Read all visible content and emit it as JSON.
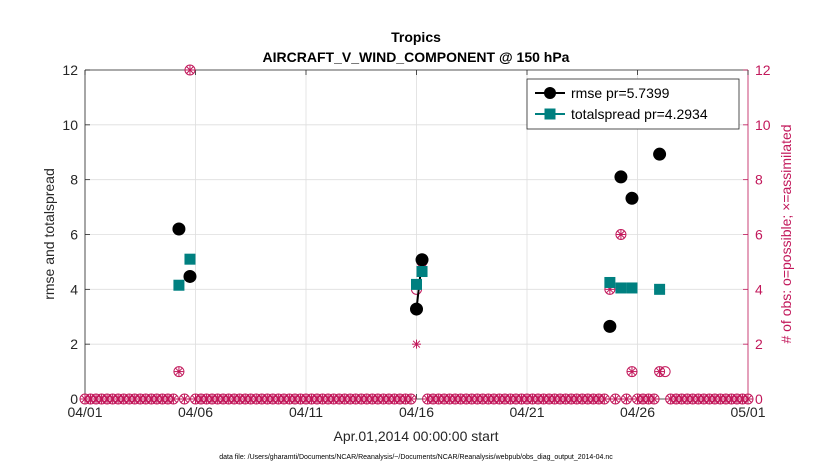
{
  "chart_data": {
    "type": "scatter",
    "title": "Tropics",
    "subtitle": "AIRCRAFT_V_WIND_COMPONENT @ 150 hPa",
    "xlabel": "Apr.01,2014 00:00:00 start",
    "ylabel": "rmse and totalspread",
    "ylabel_right": "# of obs: o=possible; ×=assimilated",
    "footnote": "data file: /Users/gharamti/Documents/NCAR/Reanalysis/~/Documents/NCAR/Reanalysis/webpub/obs_diag_output_2014-04.nc",
    "xlim": [
      1,
      31
    ],
    "ylim": [
      0,
      12
    ],
    "ylim_right": [
      0,
      12
    ],
    "x_tick_values": [
      1,
      6,
      11,
      16,
      21,
      26,
      31
    ],
    "x_tick_labels": [
      "04/01",
      "04/06",
      "04/11",
      "04/16",
      "04/21",
      "04/26",
      "05/01"
    ],
    "y_ticks": [
      0,
      2,
      4,
      6,
      8,
      10,
      12
    ],
    "y_ticks_right": [
      0,
      2,
      4,
      6,
      8,
      10,
      12
    ],
    "grid": true,
    "legend_position": "top-right",
    "colors": {
      "rmse": "#000000",
      "totalspread": "#008080",
      "obs": "#c2185b"
    },
    "series": [
      {
        "name": "rmse",
        "legend": "rmse pr=5.7399",
        "points": [
          [
            5.25,
            6.2
          ],
          [
            5.75,
            4.47
          ],
          [
            16.0,
            3.28
          ],
          [
            16.25,
            5.08
          ],
          [
            24.75,
            2.65
          ],
          [
            25.25,
            8.1
          ],
          [
            25.75,
            7.32
          ],
          [
            27.0,
            8.93
          ]
        ],
        "connected": [
          [
            16.0,
            16.25
          ]
        ]
      },
      {
        "name": "totalspread",
        "legend": "totalspread pr=4.2934",
        "points": [
          [
            5.25,
            4.15
          ],
          [
            5.75,
            5.1
          ],
          [
            16.0,
            4.18
          ],
          [
            16.25,
            4.65
          ],
          [
            24.75,
            4.25
          ],
          [
            25.25,
            4.05
          ],
          [
            25.75,
            4.05
          ],
          [
            27.0,
            4.0
          ]
        ]
      }
    ],
    "obs_possible_nonzero": [
      [
        5.25,
        1
      ],
      [
        5.75,
        12
      ],
      [
        16.0,
        4
      ],
      [
        16.25,
        5
      ],
      [
        24.75,
        4
      ],
      [
        25.25,
        6
      ],
      [
        25.75,
        1
      ],
      [
        27.0,
        1
      ],
      [
        27.25,
        1
      ]
    ],
    "obs_assimilated_nonzero": [
      [
        5.25,
        1
      ],
      [
        5.75,
        12
      ],
      [
        16.0,
        2
      ],
      [
        16.25,
        5
      ],
      [
        24.75,
        4
      ],
      [
        25.25,
        6
      ],
      [
        25.75,
        1
      ],
      [
        27.0,
        1
      ]
    ],
    "obs_zero_start": 1.0,
    "obs_zero_end": 31.0,
    "obs_zero_step": 0.25
  }
}
